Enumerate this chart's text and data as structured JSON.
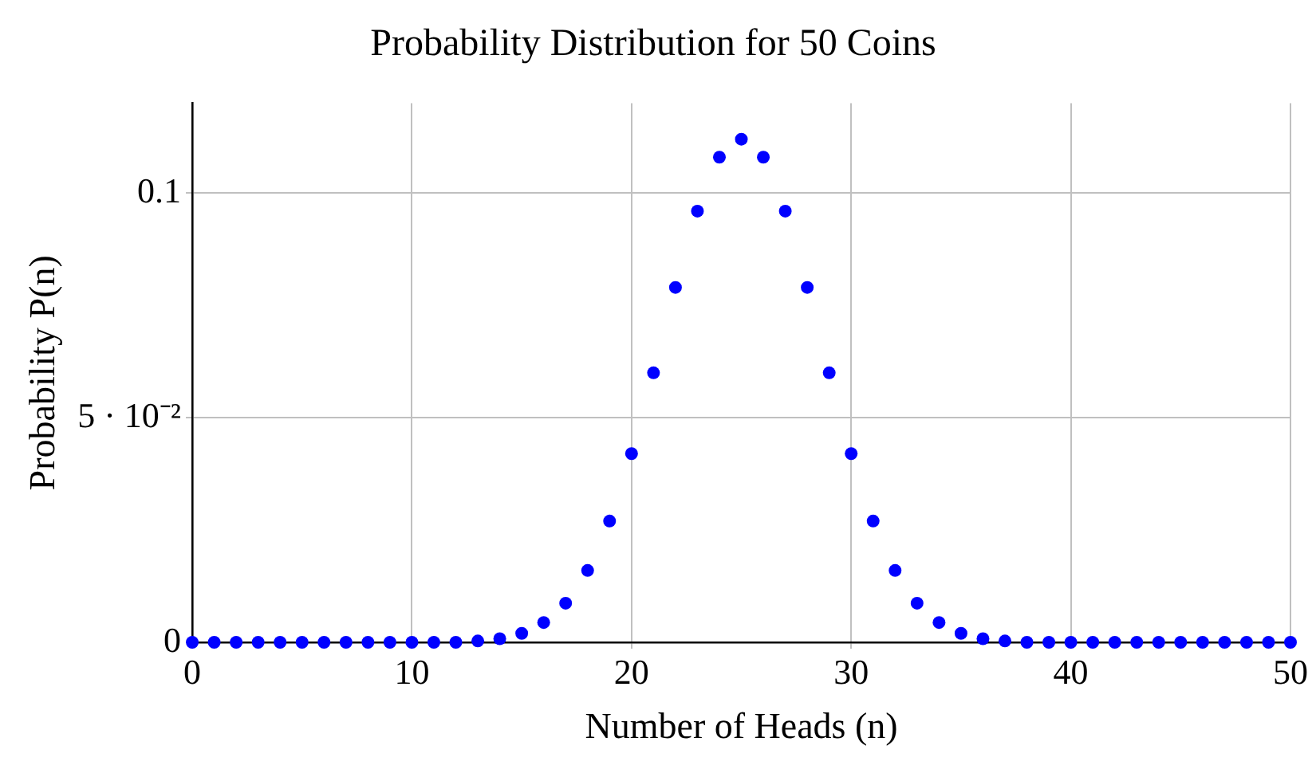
{
  "chart_data": {
    "type": "scatter",
    "title": "Probability Distribution for 50 Coins",
    "xlabel": "Number of Heads (n)",
    "ylabel": "Probability P(n)",
    "x": [
      0,
      1,
      2,
      3,
      4,
      5,
      6,
      7,
      8,
      9,
      10,
      11,
      12,
      13,
      14,
      15,
      16,
      17,
      18,
      19,
      20,
      21,
      22,
      23,
      24,
      25,
      26,
      27,
      28,
      29,
      30,
      31,
      32,
      33,
      34,
      35,
      36,
      37,
      38,
      39,
      40,
      41,
      42,
      43,
      44,
      45,
      46,
      47,
      48,
      49,
      50
    ],
    "series": [
      {
        "color": "#0000ff",
        "values": [
          0,
          0,
          0,
          0,
          0,
          0,
          0,
          0,
          0,
          0,
          0,
          0,
          0,
          0.0003,
          0.0008,
          0.002,
          0.0044,
          0.0087,
          0.016,
          0.027,
          0.042,
          0.06,
          0.079,
          0.096,
          0.108,
          0.112,
          0.108,
          0.096,
          0.079,
          0.06,
          0.042,
          0.027,
          0.016,
          0.0087,
          0.0044,
          0.002,
          0.0008,
          0.0003,
          0,
          0,
          0,
          0,
          0,
          0,
          0,
          0,
          0,
          0,
          0,
          0,
          0
        ]
      }
    ],
    "xlim": [
      0,
      50
    ],
    "xticks": [
      0,
      10,
      20,
      30,
      40,
      50
    ],
    "ylim": [
      0,
      0.12
    ],
    "yticks": [
      {
        "value": 0,
        "label": "0"
      },
      {
        "value": 0.05,
        "label": "5 · 10⁻²"
      },
      {
        "value": 0.1,
        "label": "0.1"
      }
    ],
    "grid": true,
    "legend": false,
    "marker": "circle"
  }
}
